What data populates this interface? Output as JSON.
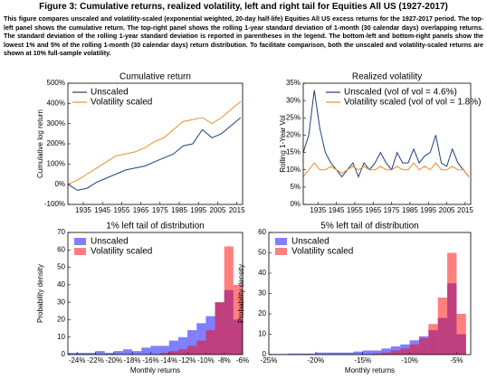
{
  "figure_title": "Figure 3: Cumulative returns, realized volatility, left and right tail for Equities All US (1927-2017)",
  "caption": "This figure compares unscaled and volatility-scaled (exponential weighted, 20-day half-life) Equities All US excess returns for the 1927-2017 period. The top-left panel shows the cumulative return. The top-right panel shows the rolling 1-year standard deviation of 1-month (30 calendar days) overlapping returns. The standard deviation of the rolling 1-year standard deviation is reported in parentheses in the legend. The bottom-left and bottom-right panels show the lowest 1% and 5% of the rolling 1-month (30 calendar days) return distribution. To facilitate comparison, both the unscaled and volatility-scaled returns are shown at 10% full-sample volatility.",
  "chart_data": [
    {
      "type": "line",
      "title": "Cumulative return",
      "y_label": "Cumulative log return",
      "x": [
        1927,
        1932,
        1937,
        1942,
        1947,
        1952,
        1957,
        1962,
        1967,
        1972,
        1977,
        1982,
        1987,
        1992,
        1997,
        2002,
        2007,
        2012,
        2017
      ],
      "series": [
        {
          "name": "Unscaled",
          "color": "#1f3f7a",
          "values": [
            0,
            -30,
            -20,
            10,
            30,
            50,
            70,
            80,
            90,
            110,
            130,
            150,
            190,
            200,
            270,
            230,
            250,
            290,
            330
          ]
        },
        {
          "name": "Volatility scaled",
          "color": "#e8912d",
          "values": [
            0,
            20,
            50,
            80,
            110,
            140,
            150,
            160,
            180,
            210,
            230,
            270,
            310,
            320,
            330,
            300,
            330,
            370,
            410
          ]
        }
      ],
      "xlim": [
        1927,
        2018
      ],
      "xticks": [
        1935,
        1945,
        1955,
        1965,
        1975,
        1985,
        1995,
        2005,
        2015
      ],
      "ylim": [
        -100,
        500
      ],
      "yticks": [
        {
          "value": -100,
          "label": "-100%"
        },
        {
          "value": 0,
          "label": "0%"
        },
        {
          "value": 100,
          "label": "100%"
        },
        {
          "value": 200,
          "label": "200%"
        },
        {
          "value": 300,
          "label": "300%"
        },
        {
          "value": 400,
          "label": "400%"
        },
        {
          "value": 500,
          "label": "500%"
        }
      ],
      "legend": "upper left"
    },
    {
      "type": "line",
      "title": "Realized volatility",
      "y_label": "Rolling 1-Year Vol",
      "x": [
        1927,
        1930,
        1933,
        1936,
        1939,
        1942,
        1945,
        1948,
        1951,
        1954,
        1957,
        1960,
        1963,
        1966,
        1969,
        1972,
        1975,
        1978,
        1981,
        1984,
        1987,
        1990,
        1993,
        1996,
        1999,
        2002,
        2005,
        2008,
        2011,
        2014,
        2017
      ],
      "series": [
        {
          "name": "Unscaled (vol of vol = 4.6%)",
          "color": "#1f3f7a",
          "values": [
            15,
            20,
            33,
            22,
            15,
            12,
            10,
            8,
            10,
            12,
            8,
            12,
            10,
            12,
            15,
            12,
            10,
            15,
            12,
            12,
            16,
            12,
            14,
            15,
            20,
            12,
            11,
            16,
            12,
            10,
            8
          ]
        },
        {
          "name": "Volatility scaled (vol of vol = 1.8%)",
          "color": "#e8912d",
          "values": [
            8,
            10,
            12,
            10,
            10,
            11,
            10,
            9,
            10,
            11,
            10,
            11,
            10,
            10,
            11,
            10,
            10,
            11,
            10,
            10,
            12,
            10,
            11,
            10,
            12,
            10,
            10,
            11,
            10,
            10,
            8
          ]
        }
      ],
      "xlim": [
        1927,
        2018
      ],
      "xticks": [
        1935,
        1945,
        1955,
        1965,
        1975,
        1985,
        1995,
        2005,
        2015
      ],
      "ylim": [
        0,
        35
      ],
      "yticks": [
        {
          "value": 0,
          "label": "0%"
        },
        {
          "value": 5,
          "label": "5%"
        },
        {
          "value": 10,
          "label": "10%"
        },
        {
          "value": 15,
          "label": "15%"
        },
        {
          "value": 20,
          "label": "20%"
        },
        {
          "value": 25,
          "label": "25%"
        },
        {
          "value": 30,
          "label": "30%"
        },
        {
          "value": 35,
          "label": "35%"
        }
      ],
      "legend": "upper right"
    },
    {
      "type": "histogram",
      "title": "1% left tail of distribution",
      "x_label": "Monthly returns",
      "y_label": "Probability density",
      "bins": [
        -25,
        -24,
        -23,
        -22,
        -21,
        -20,
        -19,
        -18,
        -17,
        -16,
        -15,
        -14,
        -13,
        -12,
        -11,
        -10,
        -9,
        -8,
        -7,
        -6
      ],
      "series": [
        {
          "name": "Unscaled",
          "color": "#0000ff",
          "values": [
            1,
            1,
            1,
            2,
            1,
            2,
            3,
            2,
            4,
            5,
            5,
            8,
            10,
            14,
            18,
            22,
            30,
            37,
            20
          ]
        },
        {
          "name": "Volatility scaled",
          "color": "#ff0000",
          "values": [
            0,
            0,
            0,
            0,
            0,
            0,
            0,
            0,
            0,
            0,
            1,
            2,
            3,
            5,
            8,
            14,
            30,
            62,
            40
          ]
        }
      ],
      "xlim": [
        -25,
        -6
      ],
      "xticks": [
        {
          "value": -24,
          "label": "-24%"
        },
        {
          "value": -22,
          "label": "-22%"
        },
        {
          "value": -20,
          "label": "-20%"
        },
        {
          "value": -18,
          "label": "-18%"
        },
        {
          "value": -16,
          "label": "-16%"
        },
        {
          "value": -14,
          "label": "-14%"
        },
        {
          "value": -12,
          "label": "-12%"
        },
        {
          "value": -10,
          "label": "-10%"
        },
        {
          "value": -8,
          "label": "-8%"
        },
        {
          "value": -6,
          "label": "-6%"
        }
      ],
      "ylim": [
        0,
        70
      ],
      "yticks": [
        0,
        10,
        20,
        30,
        40,
        50,
        60,
        70
      ],
      "legend": "upper left"
    },
    {
      "type": "histogram",
      "title": "5% left tail of distribution",
      "x_label": "Monthly returns",
      "y_label": "Probability density",
      "bins": [
        -25,
        -24,
        -23,
        -22,
        -21,
        -20,
        -19,
        -18,
        -17,
        -16,
        -15,
        -14,
        -13,
        -12,
        -11,
        -10,
        -9,
        -8,
        -7,
        -6,
        -5,
        -4
      ],
      "series": [
        {
          "name": "Unscaled",
          "color": "#0000ff",
          "values": [
            0.3,
            0.3,
            0.5,
            0.5,
            0.5,
            1,
            1,
            1,
            1,
            1.5,
            2,
            2,
            3,
            4,
            5,
            7,
            9,
            12,
            18,
            35,
            10
          ]
        },
        {
          "name": "Volatility scaled",
          "color": "#ff0000",
          "values": [
            0,
            0,
            0,
            0,
            0,
            0,
            0,
            0,
            0,
            0,
            0,
            0.5,
            1,
            2,
            3,
            5,
            8,
            15,
            28,
            50,
            20
          ]
        }
      ],
      "xlim": [
        -25,
        -3.5
      ],
      "xticks": [
        {
          "value": -25,
          "label": "-25%"
        },
        {
          "value": -20,
          "label": "-20%"
        },
        {
          "value": -15,
          "label": "-15%"
        },
        {
          "value": -10,
          "label": "-10%"
        },
        {
          "value": -5,
          "label": "-5%"
        }
      ],
      "ylim": [
        0,
        60
      ],
      "yticks": [
        0,
        10,
        20,
        30,
        40,
        50,
        60
      ],
      "legend": "upper left"
    }
  ]
}
